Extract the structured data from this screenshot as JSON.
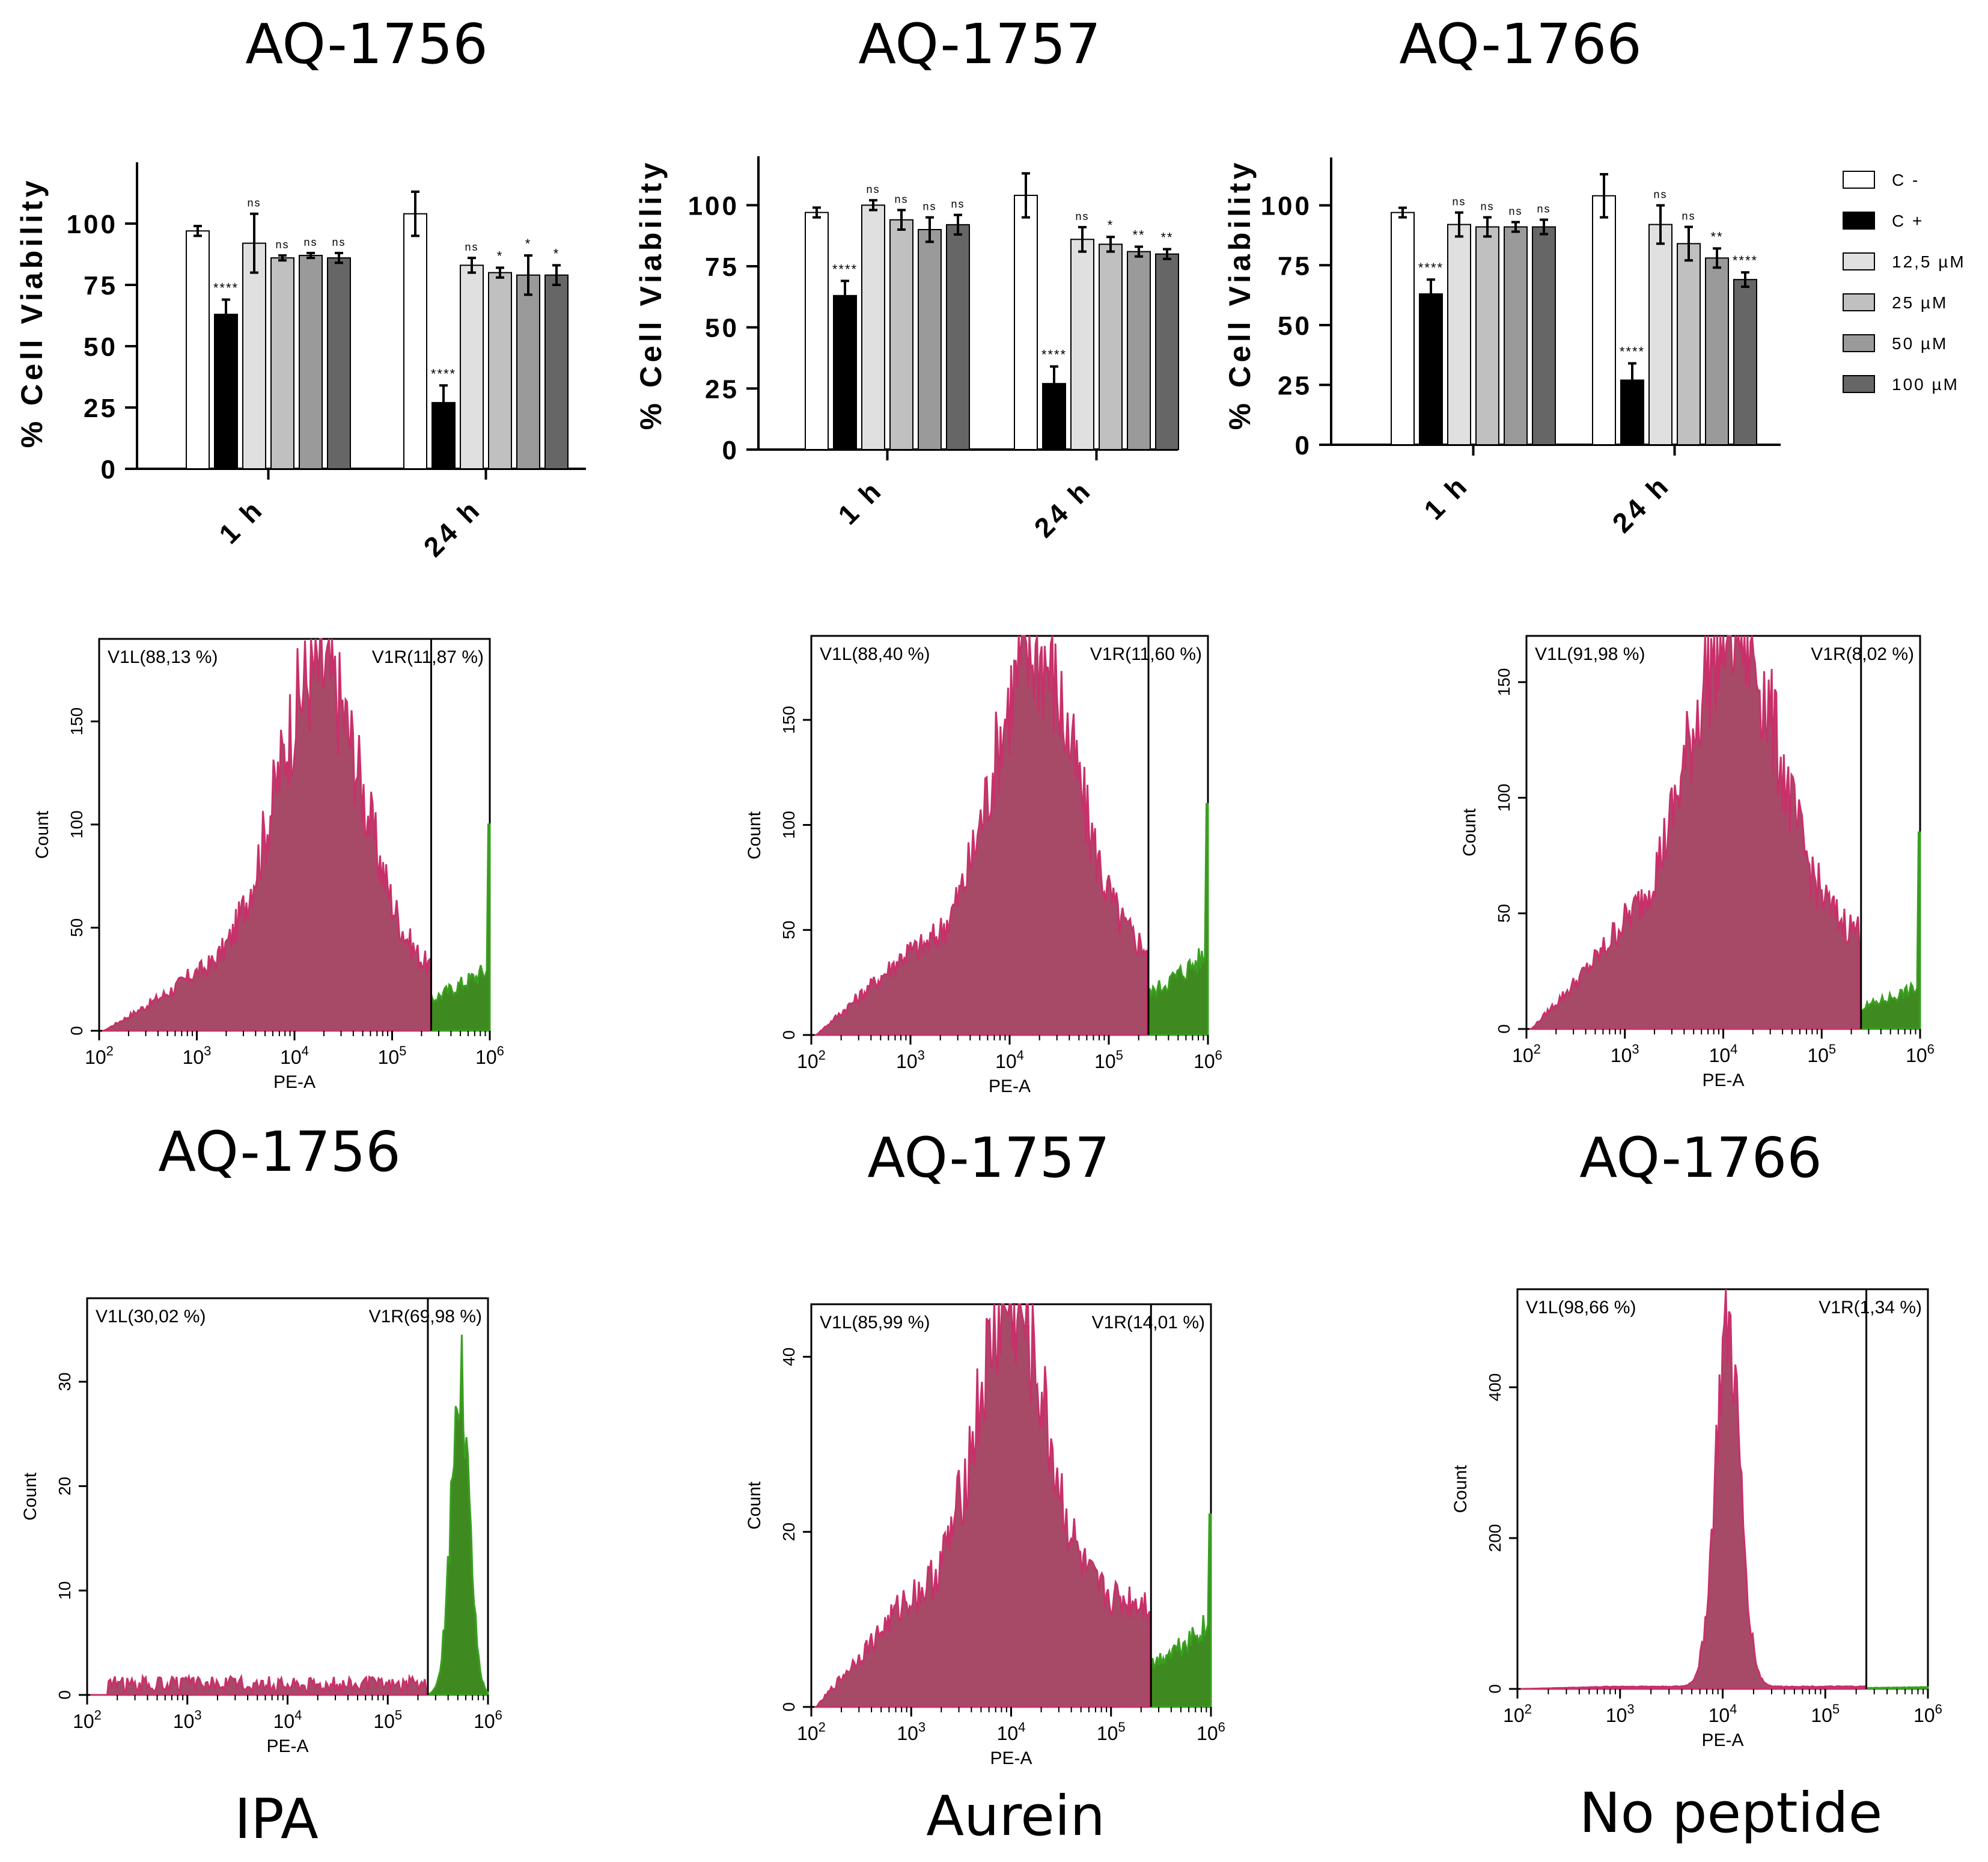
{
  "colors": {
    "c_neg": "#ffffff",
    "c_pos": "#000000",
    "c_12_5": "#e0e0e0",
    "c_25": "#c0c0c0",
    "c_50": "#9a9a9a",
    "c_100": "#666666",
    "gate_left": "#a64a68",
    "gate_left_edge": "#c8306a",
    "gate_right": "#3f8a20",
    "gate_right_edge": "#3aa020"
  },
  "legend": {
    "items": [
      "C -",
      "C +",
      "12,5 µM",
      "25 µM",
      "50 µM",
      "100 µM"
    ]
  },
  "chart_data": [
    {
      "type": "bar",
      "title": "AQ-1756",
      "ylabel": "% Cell Viability",
      "ylim": [
        0,
        125
      ],
      "yticks": [
        "0",
        "25",
        "50",
        "75",
        "100"
      ],
      "categories": [
        "1 h",
        "24 h"
      ],
      "series": [
        {
          "name": "C -",
          "values": [
            97,
            104
          ],
          "errors": [
            2,
            9
          ],
          "sig": [
            "",
            ""
          ]
        },
        {
          "name": "C +",
          "values": [
            63,
            27
          ],
          "errors": [
            6,
            7
          ],
          "sig": [
            "****",
            "****"
          ]
        },
        {
          "name": "12,5 µM",
          "values": [
            92,
            83
          ],
          "errors": [
            12,
            3
          ],
          "sig": [
            "ns",
            "ns"
          ]
        },
        {
          "name": "25 µM",
          "values": [
            86,
            80
          ],
          "errors": [
            1,
            2
          ],
          "sig": [
            "ns",
            "*"
          ]
        },
        {
          "name": "50 µM",
          "values": [
            87,
            79
          ],
          "errors": [
            1,
            8
          ],
          "sig": [
            "ns",
            "*"
          ]
        },
        {
          "name": "100 µM",
          "values": [
            86,
            79
          ],
          "errors": [
            2,
            4
          ],
          "sig": [
            "ns",
            "*"
          ]
        }
      ]
    },
    {
      "type": "bar",
      "title": "AQ-1757",
      "ylabel": "% Cell Viability",
      "ylim": [
        0,
        120
      ],
      "yticks": [
        "0",
        "25",
        "50",
        "75",
        "100"
      ],
      "categories": [
        "1 h",
        "24 h"
      ],
      "series": [
        {
          "name": "C -",
          "values": [
            97,
            104
          ],
          "errors": [
            2,
            9
          ],
          "sig": [
            "",
            ""
          ]
        },
        {
          "name": "C +",
          "values": [
            63,
            27
          ],
          "errors": [
            6,
            7
          ],
          "sig": [
            "****",
            "****"
          ]
        },
        {
          "name": "12,5 µM",
          "values": [
            100,
            86
          ],
          "errors": [
            2,
            5
          ],
          "sig": [
            "ns",
            "ns"
          ]
        },
        {
          "name": "25 µM",
          "values": [
            94,
            84
          ],
          "errors": [
            4,
            3
          ],
          "sig": [
            "ns",
            "*"
          ]
        },
        {
          "name": "50 µM",
          "values": [
            90,
            81
          ],
          "errors": [
            5,
            2
          ],
          "sig": [
            "ns",
            "**"
          ]
        },
        {
          "name": "100 µM",
          "values": [
            92,
            80
          ],
          "errors": [
            4,
            2
          ],
          "sig": [
            "ns",
            "**"
          ]
        }
      ]
    },
    {
      "type": "bar",
      "title": "AQ-1766",
      "ylabel": "% Cell Viability",
      "ylim": [
        0,
        120
      ],
      "yticks": [
        "0",
        "25",
        "50",
        "75",
        "100"
      ],
      "categories": [
        "1 h",
        "24 h"
      ],
      "series": [
        {
          "name": "C -",
          "values": [
            97,
            104
          ],
          "errors": [
            2,
            9
          ],
          "sig": [
            "",
            ""
          ]
        },
        {
          "name": "C +",
          "values": [
            63,
            27
          ],
          "errors": [
            6,
            7
          ],
          "sig": [
            "****",
            "****"
          ]
        },
        {
          "name": "12,5 µM",
          "values": [
            92,
            92
          ],
          "errors": [
            5,
            8
          ],
          "sig": [
            "ns",
            "ns"
          ]
        },
        {
          "name": "25 µM",
          "values": [
            91,
            84
          ],
          "errors": [
            4,
            7
          ],
          "sig": [
            "ns",
            "ns"
          ]
        },
        {
          "name": "50 µM",
          "values": [
            91,
            78
          ],
          "errors": [
            2,
            4
          ],
          "sig": [
            "ns",
            "**"
          ]
        },
        {
          "name": "100 µM",
          "values": [
            91,
            69
          ],
          "errors": [
            3,
            3
          ],
          "sig": [
            "ns",
            "****"
          ]
        }
      ]
    },
    {
      "type": "histogram",
      "caption": "AQ-1756",
      "xlabel": "PE-A",
      "ylabel": "Count",
      "ymax": 190,
      "yticks": [
        0,
        50,
        100,
        150
      ],
      "gate_left": "V1L(88,13 %)",
      "gate_right": "V1R(11,87 %)",
      "gate_log10": 5.4,
      "peak_log10": 4.25,
      "peak_count": 150,
      "width": 0.45,
      "tail": 25,
      "right_level": 25,
      "right_spike": 100
    },
    {
      "type": "histogram",
      "caption": "AQ-1757",
      "xlabel": "PE-A",
      "ylabel": "Count",
      "ymax": 190,
      "yticks": [
        0,
        50,
        100,
        150
      ],
      "gate_left": "V1L(88,40 %)",
      "gate_right": "V1R(11,60 %)",
      "gate_log10": 5.4,
      "peak_log10": 4.25,
      "peak_count": 145,
      "width": 0.42,
      "tail": 38,
      "right_level": 32,
      "right_spike": 110
    },
    {
      "type": "histogram",
      "caption": "AQ-1766",
      "xlabel": "PE-A",
      "ylabel": "Count",
      "ymax": 170,
      "yticks": [
        0,
        50,
        100,
        150
      ],
      "gate_left": "V1L(91,98 %)",
      "gate_right": "V1R(8,02 %)",
      "gate_log10": 5.4,
      "peak_log10": 4.1,
      "peak_count": 135,
      "width": 0.45,
      "tail": 40,
      "right_level": 15,
      "right_spike": 85
    },
    {
      "type": "histogram",
      "caption": "IPA",
      "xlabel": "PE-A",
      "ylabel": "Count",
      "ymax": 38,
      "yticks": [
        0,
        10,
        20,
        30
      ],
      "gate_left": "V1L(30,02 %)",
      "gate_right": "V1R(69,98 %)",
      "gate_log10": 5.4,
      "peak_log10": 0,
      "peak_count": 0,
      "width": 0.4,
      "tail": 1,
      "right_level": 0,
      "right_spike": 0,
      "right_peak_log10": 5.72,
      "right_peak_count": 30
    },
    {
      "type": "histogram",
      "caption": "Aurein",
      "xlabel": "PE-A",
      "ylabel": "Count",
      "ymax": 46,
      "yticks": [
        0,
        20,
        40
      ],
      "gate_left": "V1L(85,99 %)",
      "gate_right": "V1R(14,01 %)",
      "gate_log10": 5.4,
      "peak_log10": 4.0,
      "peak_count": 34,
      "width": 0.35,
      "tail": 12,
      "right_level": 8,
      "right_spike": 22
    },
    {
      "type": "histogram",
      "caption": "No peptide",
      "xlabel": "PE-A",
      "ylabel": "Count",
      "ymax": 530,
      "yticks": [
        0,
        200,
        400
      ],
      "gate_left": "V1L(98,66 %)",
      "gate_right": "V1R(1,34 %)",
      "gate_log10": 5.4,
      "peak_log10": 4.05,
      "peak_count": 470,
      "width": 0.12,
      "tail": 3,
      "right_level": 2,
      "right_spike": 0
    }
  ]
}
